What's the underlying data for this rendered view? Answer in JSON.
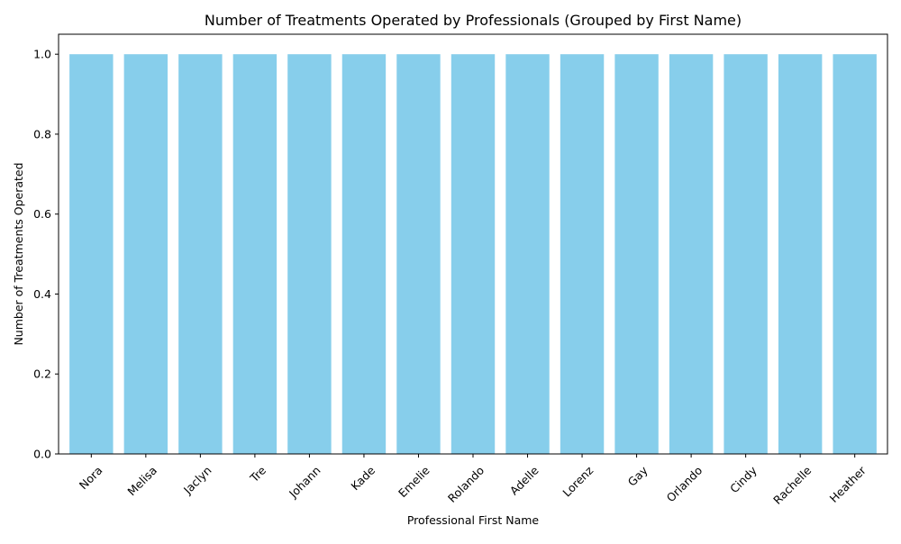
{
  "chart_data": {
    "type": "bar",
    "title": "Number of Treatments Operated by Professionals (Grouped by First Name)",
    "xlabel": "Professional First Name",
    "ylabel": "Number of Treatments Operated",
    "categories": [
      "Nora",
      "Melisa",
      "Jaclyn",
      "Tre",
      "Johann",
      "Kade",
      "Emelie",
      "Rolando",
      "Adelle",
      "Lorenz",
      "Gay",
      "Orlando",
      "Cindy",
      "Rachelle",
      "Heather"
    ],
    "values": [
      1,
      1,
      1,
      1,
      1,
      1,
      1,
      1,
      1,
      1,
      1,
      1,
      1,
      1,
      1
    ],
    "ylim": [
      0,
      1.05
    ],
    "yticks": [
      "0.0",
      "0.2",
      "0.4",
      "0.6",
      "0.8",
      "1.0"
    ],
    "grid": false,
    "bar_color": "#87CEEB"
  }
}
